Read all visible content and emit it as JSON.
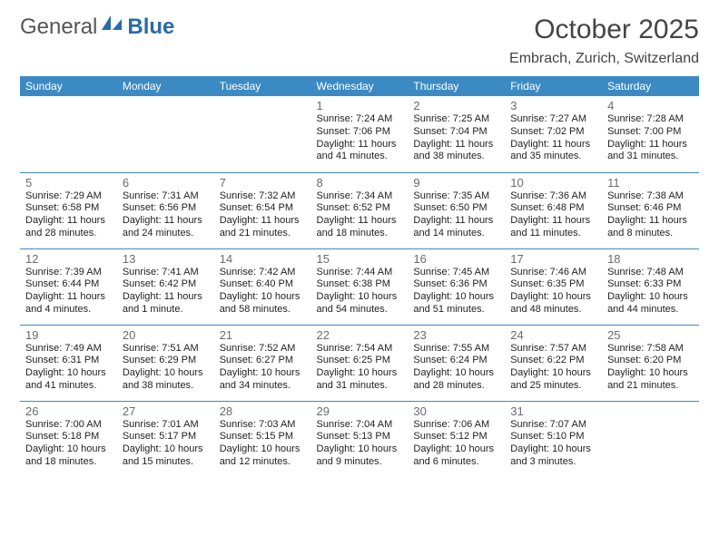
{
  "logo": {
    "part1": "General",
    "part2": "Blue"
  },
  "title": "October 2025",
  "location": "Embrach, Zurich, Switzerland",
  "colors": {
    "header": "#3b8ac4",
    "divider": "#3b8ac4",
    "text": "#333333",
    "daynum": "#6b6b6b",
    "bg": "#ffffff"
  },
  "weekdays": [
    "Sunday",
    "Monday",
    "Tuesday",
    "Wednesday",
    "Thursday",
    "Friday",
    "Saturday"
  ],
  "weeks": [
    [
      null,
      null,
      null,
      {
        "d": "1",
        "sunrise": "7:24 AM",
        "sunset": "7:06 PM",
        "daylight": "11 hours and 41 minutes."
      },
      {
        "d": "2",
        "sunrise": "7:25 AM",
        "sunset": "7:04 PM",
        "daylight": "11 hours and 38 minutes."
      },
      {
        "d": "3",
        "sunrise": "7:27 AM",
        "sunset": "7:02 PM",
        "daylight": "11 hours and 35 minutes."
      },
      {
        "d": "4",
        "sunrise": "7:28 AM",
        "sunset": "7:00 PM",
        "daylight": "11 hours and 31 minutes."
      }
    ],
    [
      {
        "d": "5",
        "sunrise": "7:29 AM",
        "sunset": "6:58 PM",
        "daylight": "11 hours and 28 minutes."
      },
      {
        "d": "6",
        "sunrise": "7:31 AM",
        "sunset": "6:56 PM",
        "daylight": "11 hours and 24 minutes."
      },
      {
        "d": "7",
        "sunrise": "7:32 AM",
        "sunset": "6:54 PM",
        "daylight": "11 hours and 21 minutes."
      },
      {
        "d": "8",
        "sunrise": "7:34 AM",
        "sunset": "6:52 PM",
        "daylight": "11 hours and 18 minutes."
      },
      {
        "d": "9",
        "sunrise": "7:35 AM",
        "sunset": "6:50 PM",
        "daylight": "11 hours and 14 minutes."
      },
      {
        "d": "10",
        "sunrise": "7:36 AM",
        "sunset": "6:48 PM",
        "daylight": "11 hours and 11 minutes."
      },
      {
        "d": "11",
        "sunrise": "7:38 AM",
        "sunset": "6:46 PM",
        "daylight": "11 hours and 8 minutes."
      }
    ],
    [
      {
        "d": "12",
        "sunrise": "7:39 AM",
        "sunset": "6:44 PM",
        "daylight": "11 hours and 4 minutes."
      },
      {
        "d": "13",
        "sunrise": "7:41 AM",
        "sunset": "6:42 PM",
        "daylight": "11 hours and 1 minute."
      },
      {
        "d": "14",
        "sunrise": "7:42 AM",
        "sunset": "6:40 PM",
        "daylight": "10 hours and 58 minutes."
      },
      {
        "d": "15",
        "sunrise": "7:44 AM",
        "sunset": "6:38 PM",
        "daylight": "10 hours and 54 minutes."
      },
      {
        "d": "16",
        "sunrise": "7:45 AM",
        "sunset": "6:36 PM",
        "daylight": "10 hours and 51 minutes."
      },
      {
        "d": "17",
        "sunrise": "7:46 AM",
        "sunset": "6:35 PM",
        "daylight": "10 hours and 48 minutes."
      },
      {
        "d": "18",
        "sunrise": "7:48 AM",
        "sunset": "6:33 PM",
        "daylight": "10 hours and 44 minutes."
      }
    ],
    [
      {
        "d": "19",
        "sunrise": "7:49 AM",
        "sunset": "6:31 PM",
        "daylight": "10 hours and 41 minutes."
      },
      {
        "d": "20",
        "sunrise": "7:51 AM",
        "sunset": "6:29 PM",
        "daylight": "10 hours and 38 minutes."
      },
      {
        "d": "21",
        "sunrise": "7:52 AM",
        "sunset": "6:27 PM",
        "daylight": "10 hours and 34 minutes."
      },
      {
        "d": "22",
        "sunrise": "7:54 AM",
        "sunset": "6:25 PM",
        "daylight": "10 hours and 31 minutes."
      },
      {
        "d": "23",
        "sunrise": "7:55 AM",
        "sunset": "6:24 PM",
        "daylight": "10 hours and 28 minutes."
      },
      {
        "d": "24",
        "sunrise": "7:57 AM",
        "sunset": "6:22 PM",
        "daylight": "10 hours and 25 minutes."
      },
      {
        "d": "25",
        "sunrise": "7:58 AM",
        "sunset": "6:20 PM",
        "daylight": "10 hours and 21 minutes."
      }
    ],
    [
      {
        "d": "26",
        "sunrise": "7:00 AM",
        "sunset": "5:18 PM",
        "daylight": "10 hours and 18 minutes."
      },
      {
        "d": "27",
        "sunrise": "7:01 AM",
        "sunset": "5:17 PM",
        "daylight": "10 hours and 15 minutes."
      },
      {
        "d": "28",
        "sunrise": "7:03 AM",
        "sunset": "5:15 PM",
        "daylight": "10 hours and 12 minutes."
      },
      {
        "d": "29",
        "sunrise": "7:04 AM",
        "sunset": "5:13 PM",
        "daylight": "10 hours and 9 minutes."
      },
      {
        "d": "30",
        "sunrise": "7:06 AM",
        "sunset": "5:12 PM",
        "daylight": "10 hours and 6 minutes."
      },
      {
        "d": "31",
        "sunrise": "7:07 AM",
        "sunset": "5:10 PM",
        "daylight": "10 hours and 3 minutes."
      },
      null
    ]
  ],
  "labels": {
    "sunrise": "Sunrise: ",
    "sunset": "Sunset: ",
    "daylight": "Daylight: "
  }
}
